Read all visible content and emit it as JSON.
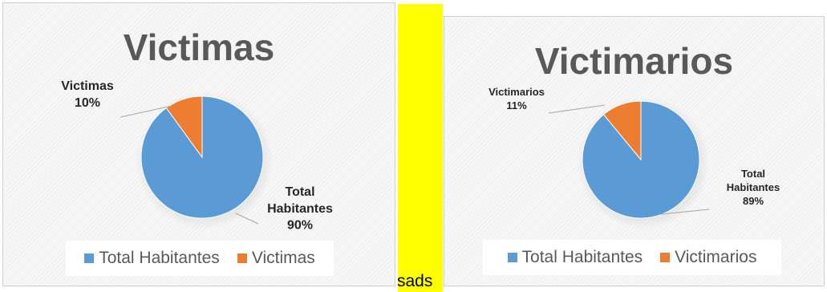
{
  "colors": {
    "total_habitantes": "#5b9bd5",
    "highlight": "#ed7d31"
  },
  "yellow_label": "sads",
  "chart_data": [
    {
      "type": "pie",
      "title": "Victimas",
      "categories": [
        "Total Habitantes",
        "Victimas"
      ],
      "values": [
        90,
        10
      ],
      "data_labels": [
        {
          "name": "Total Habitantes",
          "name_lines": [
            "Total",
            "Habitantes"
          ],
          "value": "90%"
        },
        {
          "name": "Victimas",
          "name_lines": [
            "Victimas"
          ],
          "value": "10%"
        }
      ],
      "legend": {
        "position": "bottom",
        "entries": [
          "Total Habitantes",
          "Victimas"
        ]
      }
    },
    {
      "type": "pie",
      "title": "Victimarios",
      "categories": [
        "Total Habitantes",
        "Victimarios"
      ],
      "values": [
        89,
        11
      ],
      "data_labels": [
        {
          "name": "Total Habitantes",
          "name_lines": [
            "Total",
            "Habitantes"
          ],
          "value": "89%"
        },
        {
          "name": "Victimarios",
          "name_lines": [
            "Victimarios"
          ],
          "value": "11%"
        }
      ],
      "legend": {
        "position": "bottom",
        "entries": [
          "Total Habitantes",
          "Victimarios"
        ]
      }
    }
  ]
}
